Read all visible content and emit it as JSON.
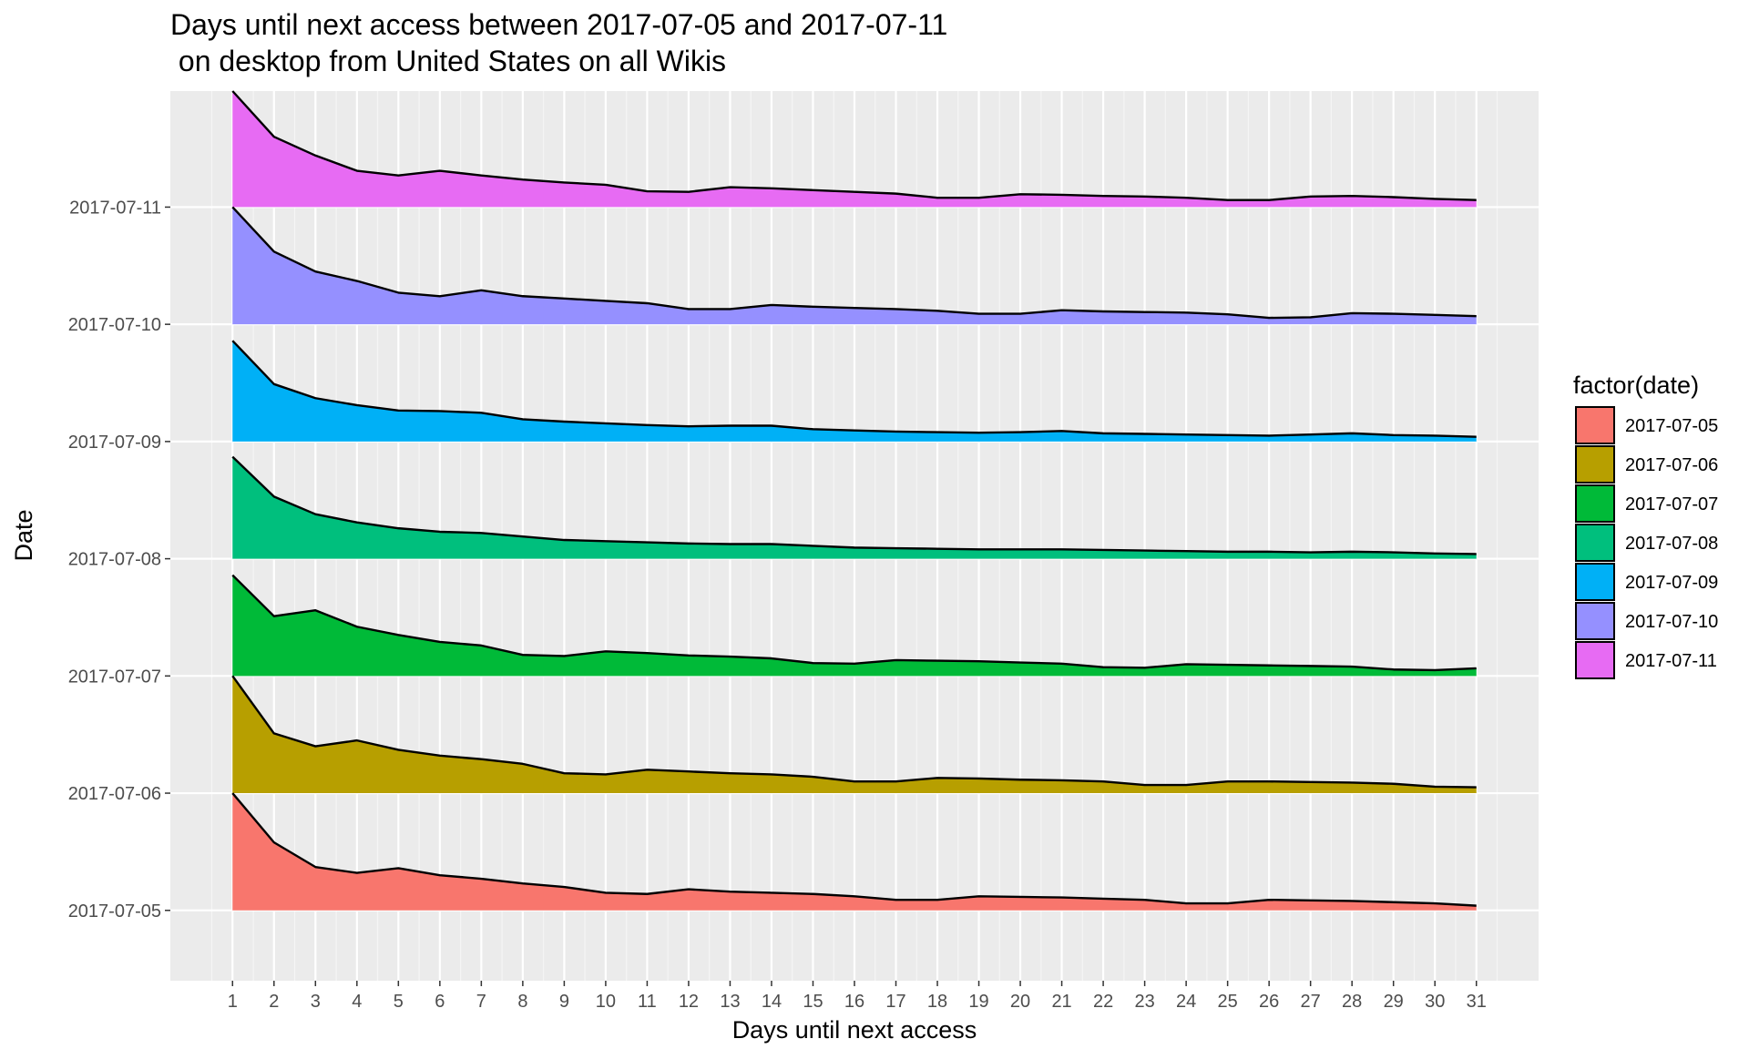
{
  "chart_data": {
    "type": "area",
    "title": [
      "Days until next access between 2017-07-05 and 2017-07-11",
      " on desktop from United States on all Wikis"
    ],
    "xlabel": "Days until next access",
    "ylabel": "Date",
    "x": [
      1,
      2,
      3,
      4,
      5,
      6,
      7,
      8,
      9,
      10,
      11,
      12,
      13,
      14,
      15,
      16,
      17,
      18,
      19,
      20,
      21,
      22,
      23,
      24,
      25,
      26,
      27,
      28,
      29,
      30,
      31
    ],
    "xlim": [
      -0.5,
      32.5
    ],
    "ylim": [
      -0.6,
      6.99
    ],
    "grid": true,
    "legend": {
      "title": "factor(date)",
      "position": "right"
    },
    "series": [
      {
        "name": "2017-07-05",
        "color": "#F8766D",
        "offset": 0,
        "values": [
          1.0,
          0.58,
          0.37,
          0.32,
          0.36,
          0.3,
          0.27,
          0.23,
          0.2,
          0.15,
          0.14,
          0.18,
          0.16,
          0.15,
          0.14,
          0.12,
          0.09,
          0.09,
          0.12,
          0.115,
          0.11,
          0.1,
          0.09,
          0.06,
          0.06,
          0.09,
          0.085,
          0.08,
          0.07,
          0.06,
          0.04
        ]
      },
      {
        "name": "2017-07-06",
        "color": "#B79F00",
        "offset": 1,
        "values": [
          1.0,
          0.51,
          0.4,
          0.45,
          0.37,
          0.32,
          0.29,
          0.25,
          0.17,
          0.16,
          0.2,
          0.185,
          0.17,
          0.16,
          0.14,
          0.1,
          0.1,
          0.13,
          0.125,
          0.115,
          0.11,
          0.1,
          0.07,
          0.07,
          0.1,
          0.1,
          0.095,
          0.09,
          0.08,
          0.055,
          0.05
        ]
      },
      {
        "name": "2017-07-07",
        "color": "#00BA38",
        "offset": 2,
        "values": [
          0.86,
          0.51,
          0.56,
          0.42,
          0.35,
          0.29,
          0.26,
          0.18,
          0.17,
          0.21,
          0.195,
          0.175,
          0.165,
          0.15,
          0.11,
          0.105,
          0.135,
          0.13,
          0.125,
          0.115,
          0.105,
          0.075,
          0.07,
          0.1,
          0.095,
          0.09,
          0.085,
          0.08,
          0.055,
          0.05,
          0.065
        ]
      },
      {
        "name": "2017-07-08",
        "color": "#00BF7D",
        "offset": 3,
        "values": [
          0.87,
          0.53,
          0.38,
          0.31,
          0.26,
          0.23,
          0.22,
          0.19,
          0.16,
          0.15,
          0.14,
          0.13,
          0.125,
          0.125,
          0.11,
          0.095,
          0.09,
          0.085,
          0.08,
          0.08,
          0.08,
          0.075,
          0.07,
          0.065,
          0.06,
          0.06,
          0.055,
          0.06,
          0.055,
          0.045,
          0.04
        ]
      },
      {
        "name": "2017-07-09",
        "color": "#00B0F6",
        "offset": 4,
        "values": [
          0.86,
          0.49,
          0.37,
          0.31,
          0.265,
          0.26,
          0.245,
          0.19,
          0.17,
          0.155,
          0.14,
          0.13,
          0.135,
          0.135,
          0.105,
          0.095,
          0.085,
          0.08,
          0.075,
          0.08,
          0.09,
          0.07,
          0.065,
          0.06,
          0.055,
          0.05,
          0.06,
          0.07,
          0.055,
          0.05,
          0.04
        ]
      },
      {
        "name": "2017-07-10",
        "color": "#9590FF",
        "offset": 5,
        "values": [
          1.0,
          0.62,
          0.45,
          0.37,
          0.27,
          0.24,
          0.29,
          0.24,
          0.22,
          0.2,
          0.18,
          0.13,
          0.13,
          0.165,
          0.15,
          0.14,
          0.13,
          0.115,
          0.09,
          0.09,
          0.12,
          0.11,
          0.105,
          0.1,
          0.085,
          0.055,
          0.06,
          0.095,
          0.09,
          0.08,
          0.07
        ]
      },
      {
        "name": "2017-07-11",
        "color": "#E76BF3",
        "offset": 6,
        "values": [
          0.99,
          0.6,
          0.44,
          0.31,
          0.27,
          0.31,
          0.27,
          0.235,
          0.21,
          0.19,
          0.135,
          0.13,
          0.17,
          0.16,
          0.145,
          0.13,
          0.115,
          0.08,
          0.08,
          0.11,
          0.105,
          0.095,
          0.09,
          0.08,
          0.06,
          0.06,
          0.09,
          0.095,
          0.085,
          0.07,
          0.06
        ]
      }
    ],
    "yticks": [
      "2017-07-05",
      "2017-07-06",
      "2017-07-07",
      "2017-07-08",
      "2017-07-09",
      "2017-07-10",
      "2017-07-11"
    ]
  }
}
